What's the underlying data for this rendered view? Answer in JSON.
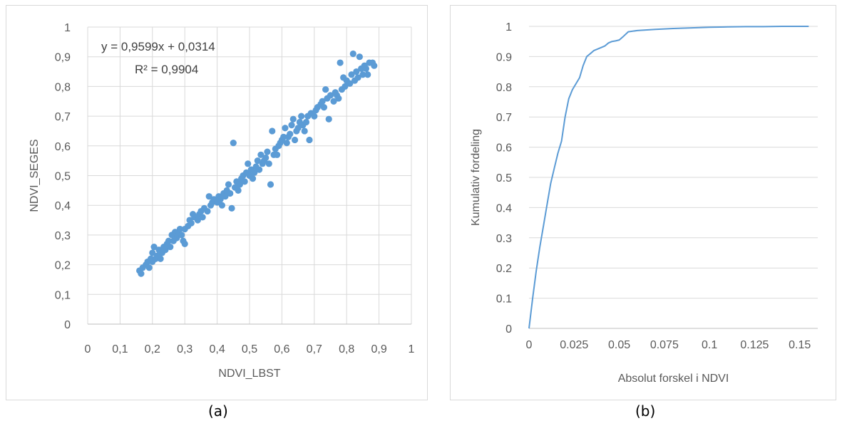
{
  "chart_data": [
    {
      "type": "scatter",
      "xlabel": "NDVI_LBST",
      "ylabel": "NDVI_SEGES",
      "xlim": [
        0,
        1
      ],
      "ylim": [
        0,
        1
      ],
      "xticks": [
        "0",
        "0,1",
        "0,2",
        "0,3",
        "0,4",
        "0,5",
        "0,6",
        "0,7",
        "0,8",
        "0,9",
        "1"
      ],
      "yticks": [
        "0",
        "0,1",
        "0,2",
        "0,3",
        "0,4",
        "0,5",
        "0,6",
        "0,7",
        "0,8",
        "0,9",
        "1"
      ],
      "grid": true,
      "color": "#5b9bd5",
      "trendline": {
        "slope": 0.9599,
        "intercept": 0.0314,
        "equation": "y = 0,9599x + 0,0314",
        "r2": "R² = 0,9904"
      },
      "points": [
        [
          0.16,
          0.18
        ],
        [
          0.165,
          0.17
        ],
        [
          0.17,
          0.19
        ],
        [
          0.18,
          0.2
        ],
        [
          0.185,
          0.21
        ],
        [
          0.19,
          0.19
        ],
        [
          0.195,
          0.22
        ],
        [
          0.2,
          0.21
        ],
        [
          0.2,
          0.24
        ],
        [
          0.205,
          0.26
        ],
        [
          0.21,
          0.22
        ],
        [
          0.215,
          0.23
        ],
        [
          0.22,
          0.25
        ],
        [
          0.225,
          0.22
        ],
        [
          0.23,
          0.24
        ],
        [
          0.235,
          0.26
        ],
        [
          0.24,
          0.25
        ],
        [
          0.245,
          0.27
        ],
        [
          0.25,
          0.28
        ],
        [
          0.255,
          0.26
        ],
        [
          0.26,
          0.3
        ],
        [
          0.265,
          0.28
        ],
        [
          0.27,
          0.31
        ],
        [
          0.275,
          0.29
        ],
        [
          0.28,
          0.3
        ],
        [
          0.285,
          0.32
        ],
        [
          0.29,
          0.3
        ],
        [
          0.295,
          0.28
        ],
        [
          0.3,
          0.27
        ],
        [
          0.3,
          0.32
        ],
        [
          0.31,
          0.33
        ],
        [
          0.315,
          0.35
        ],
        [
          0.32,
          0.34
        ],
        [
          0.325,
          0.37
        ],
        [
          0.33,
          0.36
        ],
        [
          0.34,
          0.35
        ],
        [
          0.345,
          0.37
        ],
        [
          0.35,
          0.38
        ],
        [
          0.355,
          0.36
        ],
        [
          0.36,
          0.39
        ],
        [
          0.37,
          0.38
        ],
        [
          0.375,
          0.43
        ],
        [
          0.38,
          0.4
        ],
        [
          0.385,
          0.41
        ],
        [
          0.39,
          0.42
        ],
        [
          0.4,
          0.41
        ],
        [
          0.405,
          0.43
        ],
        [
          0.41,
          0.42
        ],
        [
          0.415,
          0.4
        ],
        [
          0.42,
          0.44
        ],
        [
          0.425,
          0.43
        ],
        [
          0.43,
          0.45
        ],
        [
          0.435,
          0.47
        ],
        [
          0.44,
          0.44
        ],
        [
          0.445,
          0.39
        ],
        [
          0.45,
          0.61
        ],
        [
          0.455,
          0.46
        ],
        [
          0.46,
          0.48
        ],
        [
          0.465,
          0.45
        ],
        [
          0.47,
          0.47
        ],
        [
          0.475,
          0.49
        ],
        [
          0.48,
          0.5
        ],
        [
          0.485,
          0.48
        ],
        [
          0.49,
          0.51
        ],
        [
          0.495,
          0.54
        ],
        [
          0.5,
          0.5
        ],
        [
          0.505,
          0.52
        ],
        [
          0.51,
          0.49
        ],
        [
          0.515,
          0.51
        ],
        [
          0.52,
          0.53
        ],
        [
          0.525,
          0.55
        ],
        [
          0.53,
          0.52
        ],
        [
          0.535,
          0.57
        ],
        [
          0.54,
          0.54
        ],
        [
          0.545,
          0.55
        ],
        [
          0.55,
          0.56
        ],
        [
          0.555,
          0.58
        ],
        [
          0.56,
          0.54
        ],
        [
          0.565,
          0.47
        ],
        [
          0.57,
          0.65
        ],
        [
          0.575,
          0.57
        ],
        [
          0.58,
          0.59
        ],
        [
          0.585,
          0.57
        ],
        [
          0.59,
          0.6
        ],
        [
          0.595,
          0.61
        ],
        [
          0.6,
          0.62
        ],
        [
          0.605,
          0.63
        ],
        [
          0.61,
          0.66
        ],
        [
          0.615,
          0.61
        ],
        [
          0.62,
          0.63
        ],
        [
          0.625,
          0.64
        ],
        [
          0.63,
          0.67
        ],
        [
          0.635,
          0.69
        ],
        [
          0.64,
          0.62
        ],
        [
          0.645,
          0.65
        ],
        [
          0.65,
          0.66
        ],
        [
          0.655,
          0.68
        ],
        [
          0.66,
          0.7
        ],
        [
          0.665,
          0.67
        ],
        [
          0.67,
          0.65
        ],
        [
          0.675,
          0.68
        ],
        [
          0.68,
          0.7
        ],
        [
          0.685,
          0.62
        ],
        [
          0.69,
          0.71
        ],
        [
          0.7,
          0.7
        ],
        [
          0.705,
          0.72
        ],
        [
          0.71,
          0.73
        ],
        [
          0.72,
          0.74
        ],
        [
          0.725,
          0.75
        ],
        [
          0.73,
          0.73
        ],
        [
          0.735,
          0.79
        ],
        [
          0.74,
          0.76
        ],
        [
          0.745,
          0.69
        ],
        [
          0.75,
          0.77
        ],
        [
          0.76,
          0.75
        ],
        [
          0.765,
          0.78
        ],
        [
          0.77,
          0.77
        ],
        [
          0.775,
          0.76
        ],
        [
          0.78,
          0.88
        ],
        [
          0.785,
          0.79
        ],
        [
          0.79,
          0.83
        ],
        [
          0.795,
          0.8
        ],
        [
          0.8,
          0.82
        ],
        [
          0.81,
          0.81
        ],
        [
          0.815,
          0.84
        ],
        [
          0.82,
          0.91
        ],
        [
          0.825,
          0.82
        ],
        [
          0.83,
          0.85
        ],
        [
          0.835,
          0.83
        ],
        [
          0.84,
          0.9
        ],
        [
          0.845,
          0.86
        ],
        [
          0.85,
          0.84
        ],
        [
          0.855,
          0.87
        ],
        [
          0.86,
          0.86
        ],
        [
          0.865,
          0.84
        ],
        [
          0.87,
          0.88
        ],
        [
          0.88,
          0.88
        ],
        [
          0.885,
          0.87
        ]
      ]
    },
    {
      "type": "line",
      "xlabel": "Absolut forskel i NDVI",
      "ylabel": "Kumulativ fordeling",
      "xlim": [
        0,
        0.16
      ],
      "ylim": [
        0,
        1
      ],
      "xticks": [
        "0",
        "0.025",
        "0.05",
        "0.075",
        "0.1",
        "0.125",
        "0.15"
      ],
      "yticks": [
        "0",
        "0.1",
        "0.2",
        "0.3",
        "0.4",
        "0.5",
        "0.6",
        "0.7",
        "0.8",
        "0.9",
        "1"
      ],
      "grid": true,
      "color": "#5b9bd5",
      "x": [
        0,
        0.002,
        0.004,
        0.006,
        0.008,
        0.01,
        0.012,
        0.014,
        0.016,
        0.018,
        0.02,
        0.022,
        0.024,
        0.026,
        0.028,
        0.03,
        0.032,
        0.034,
        0.036,
        0.038,
        0.04,
        0.042,
        0.044,
        0.046,
        0.048,
        0.05,
        0.052,
        0.055,
        0.06,
        0.07,
        0.08,
        0.09,
        0.1,
        0.11,
        0.12,
        0.13,
        0.14,
        0.15,
        0.155
      ],
      "y": [
        0,
        0.1,
        0.19,
        0.27,
        0.34,
        0.41,
        0.48,
        0.53,
        0.58,
        0.62,
        0.7,
        0.76,
        0.79,
        0.81,
        0.83,
        0.87,
        0.9,
        0.91,
        0.92,
        0.925,
        0.93,
        0.935,
        0.945,
        0.95,
        0.952,
        0.955,
        0.965,
        0.982,
        0.986,
        0.99,
        0.993,
        0.995,
        0.997,
        0.998,
        0.999,
        0.999,
        1,
        1,
        1
      ]
    }
  ],
  "captions": {
    "a": "(a)",
    "b": "(b)"
  }
}
